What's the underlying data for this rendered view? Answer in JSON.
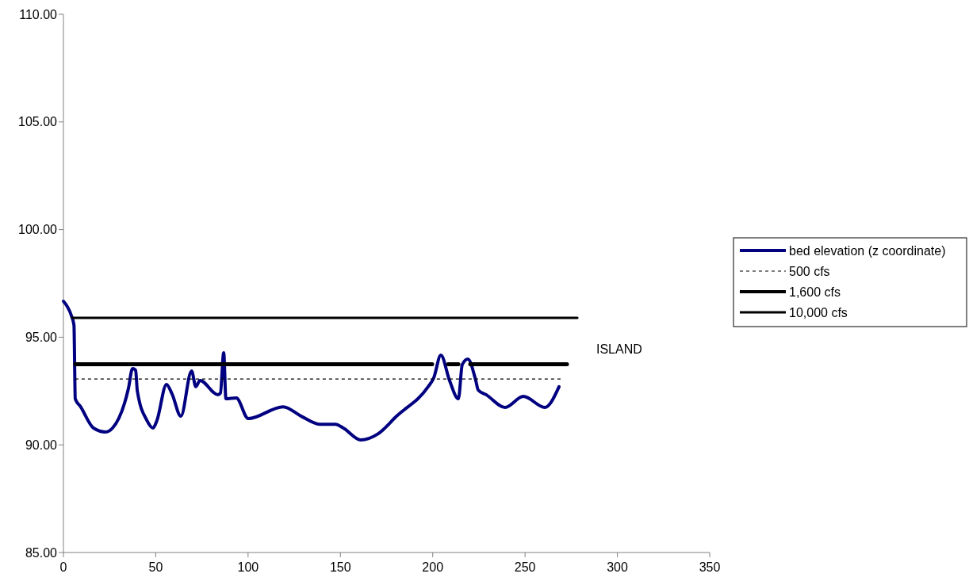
{
  "chart_data": {
    "type": "line",
    "legend": "right",
    "marker": "none",
    "grid": false,
    "xlim": [
      0,
      350
    ],
    "xticks": [
      0,
      50,
      100,
      150,
      200,
      250,
      300,
      350
    ],
    "ylim": [
      85,
      110
    ],
    "yticks": [
      {
        "value": 85,
        "label": "85.00"
      },
      {
        "value": 90,
        "label": "90.00"
      },
      {
        "value": 95,
        "label": "95.00"
      },
      {
        "value": 100,
        "label": "100.00"
      },
      {
        "value": 105,
        "label": "105.00"
      },
      {
        "value": 110,
        "label": "110.00"
      }
    ],
    "annotations": [
      "ISLAND"
    ],
    "series": [
      {
        "name": "bed elevation (z coordinate)",
        "color": "#000080",
        "line_style": "solid",
        "x": [
          0,
          4.3,
          5.7,
          6.4,
          9.3,
          16.3,
          22.8,
          26.6,
          35.2,
          37.4,
          39.1,
          40.0,
          45.1,
          48.5,
          50.7,
          55.8,
          58.8,
          63.6,
          69.4,
          71.7,
          73.9,
          83.7,
          85.0,
          86.8,
          88.0,
          93.6,
          100.1,
          119,
          128.8,
          138.7,
          147.3,
          151.6,
          161.0,
          170.5,
          180.4,
          197.5,
          200.5,
          204.4,
          209.1,
          213.9,
          216.0,
          219.0,
          223.3,
          224.6,
          228.9,
          239.2,
          249.1,
          260.7,
          268.4
        ],
        "values": [
          96.67,
          96.0,
          95.57,
          92.14,
          91.77,
          90.78,
          90.6,
          90.78,
          92.62,
          93.54,
          93.47,
          92.51,
          91.15,
          90.78,
          91.15,
          92.81,
          92.37,
          91.33,
          93.43,
          92.7,
          92.99,
          92.33,
          92.4,
          94.28,
          92.14,
          92.18,
          91.22,
          91.77,
          91.33,
          90.96,
          90.96,
          90.78,
          90.23,
          90.52,
          91.33,
          92.7,
          93.1,
          94.17,
          92.99,
          92.14,
          93.73,
          93.98,
          92.99,
          92.55,
          92.33,
          91.74,
          92.25,
          91.74,
          92.7
        ]
      },
      {
        "name": "500 cfs",
        "color": "#000000",
        "line_style": "dashed",
        "x": [
          6.4,
          269.7
        ],
        "values": [
          93.06,
          93.06
        ]
      },
      {
        "name": "1,600 cfs",
        "color": "#000000",
        "line_style": "solid",
        "x": [
          6.4,
          199.7,
          204,
          208.3,
          213.9,
          217,
          220.3,
          272.7
        ],
        "values": [
          93.74,
          93.74,
          null,
          93.74,
          93.74,
          null,
          93.74,
          93.74
        ]
      },
      {
        "name": "10,000 cfs",
        "color": "#000000",
        "line_style": "solid",
        "x": [
          4.7,
          278.3
        ],
        "values": [
          95.9,
          95.9
        ]
      }
    ]
  }
}
